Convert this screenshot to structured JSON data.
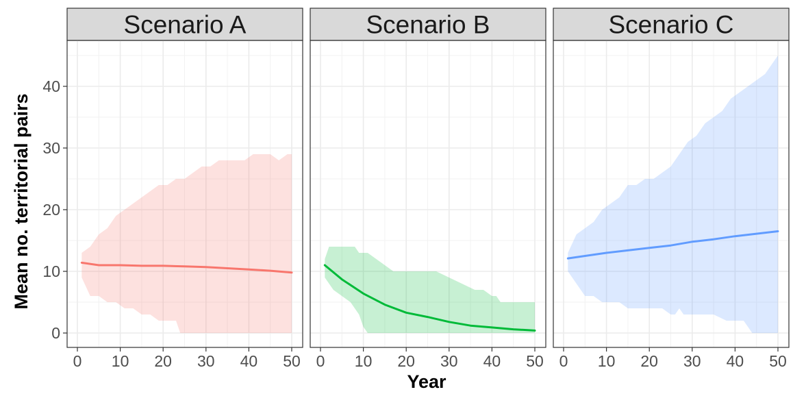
{
  "chart_data": {
    "type": "area",
    "xlabel": "Year",
    "ylabel": "Mean no. territorial pairs",
    "xlim": [
      0,
      50
    ],
    "ylim": [
      0,
      45
    ],
    "x_ticks": [
      0,
      10,
      20,
      30,
      40,
      50
    ],
    "y_ticks": [
      0,
      10,
      20,
      30,
      40
    ],
    "grid": true,
    "legend": "none",
    "panels": [
      {
        "title": "Scenario A",
        "color": "#F8766D",
        "band_color": "#F8766D",
        "mean": {
          "x": [
            1,
            5,
            10,
            15,
            20,
            25,
            30,
            35,
            40,
            45,
            50
          ],
          "y": [
            11.4,
            11.0,
            11.0,
            10.9,
            10.9,
            10.8,
            10.7,
            10.5,
            10.3,
            10.1,
            9.8
          ]
        },
        "upper": {
          "x": [
            1,
            3,
            5,
            7,
            9,
            11,
            13,
            15,
            17,
            19,
            21,
            23,
            25,
            27,
            29,
            31,
            33,
            35,
            37,
            39,
            41,
            43,
            45,
            47,
            49,
            50
          ],
          "y": [
            13,
            14,
            16,
            17,
            19,
            20,
            21,
            22,
            23,
            24,
            24,
            25,
            25,
            26,
            27,
            27,
            28,
            28,
            28,
            28,
            29,
            29,
            29,
            28,
            29,
            29
          ]
        },
        "lower": {
          "x": [
            1,
            3,
            5,
            7,
            9,
            11,
            13,
            15,
            17,
            19,
            21,
            23,
            24,
            25,
            30,
            40,
            50
          ],
          "y": [
            9,
            6,
            6,
            5,
            5,
            4,
            4,
            3,
            3,
            2,
            2,
            2,
            0,
            0,
            0,
            0,
            0
          ]
        }
      },
      {
        "title": "Scenario B",
        "color": "#00BA38",
        "band_color": "#00BA38",
        "mean": {
          "x": [
            1,
            5,
            10,
            15,
            20,
            25,
            30,
            35,
            40,
            45,
            50
          ],
          "y": [
            11.0,
            8.7,
            6.4,
            4.6,
            3.3,
            2.6,
            1.8,
            1.2,
            0.9,
            0.6,
            0.4
          ]
        },
        "upper": {
          "x": [
            1,
            2,
            8,
            9,
            11,
            13,
            15,
            17,
            27,
            30,
            33,
            36,
            38,
            40,
            41,
            42,
            50
          ],
          "y": [
            12,
            14,
            14,
            13,
            13,
            12,
            11,
            10,
            10,
            9,
            8,
            7,
            7,
            6,
            6,
            5,
            5
          ]
        },
        "lower": {
          "x": [
            1,
            3,
            5,
            7,
            9,
            10,
            11,
            15,
            20,
            30,
            40,
            50
          ],
          "y": [
            9,
            7,
            6,
            5,
            3,
            1,
            0,
            0,
            0,
            0,
            0,
            0
          ]
        }
      },
      {
        "title": "Scenario C",
        "color": "#619CFF",
        "band_color": "#619CFF",
        "mean": {
          "x": [
            1,
            5,
            10,
            15,
            20,
            25,
            30,
            35,
            40,
            45,
            50
          ],
          "y": [
            12.1,
            12.5,
            13.0,
            13.4,
            13.8,
            14.2,
            14.8,
            15.2,
            15.7,
            16.1,
            16.5
          ]
        },
        "upper": {
          "x": [
            1,
            3,
            5,
            7,
            9,
            11,
            13,
            15,
            17,
            19,
            21,
            23,
            25,
            27,
            29,
            31,
            33,
            35,
            37,
            39,
            41,
            43,
            45,
            47,
            49,
            50
          ],
          "y": [
            13,
            16,
            17,
            18,
            20,
            21,
            22,
            24,
            24,
            25,
            25,
            26,
            27,
            29,
            31,
            32,
            34,
            35,
            36,
            38,
            39,
            40,
            41,
            42,
            44,
            45
          ]
        },
        "lower": {
          "x": [
            1,
            3,
            5,
            7,
            9,
            11,
            13,
            15,
            17,
            20,
            23,
            25,
            26,
            27,
            28,
            29,
            31,
            35,
            38,
            41,
            42,
            43,
            44,
            45,
            50
          ],
          "y": [
            10,
            8,
            6,
            6,
            5,
            5,
            5,
            4,
            4,
            4,
            4,
            3,
            3,
            4,
            3,
            3,
            3,
            3,
            2,
            2,
            2,
            1,
            0,
            0,
            0
          ]
        }
      }
    ]
  }
}
